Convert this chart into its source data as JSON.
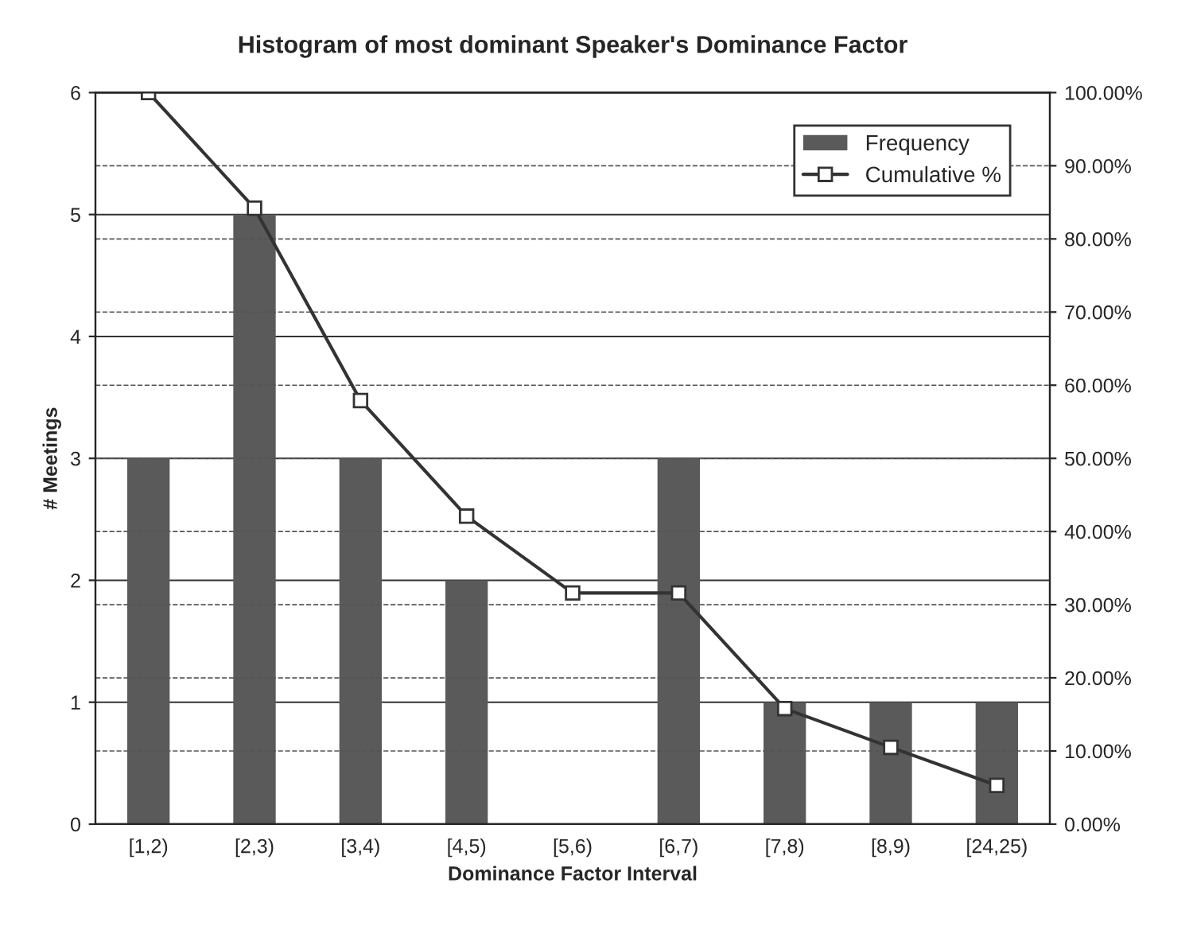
{
  "chart_data": {
    "type": "bar",
    "title": "Histogram of most dominant Speaker's Dominance Factor",
    "xlabel": "Dominance Factor Interval",
    "ylabel": "# Meetings",
    "categories": [
      "[1,2)",
      "[2,3)",
      "[3,4)",
      "[4,5)",
      "[5,6)",
      "[6,7)",
      "[7,8)",
      "[8,9)",
      "[24,25)"
    ],
    "series": [
      {
        "name": "Frequency",
        "color": "#5a5a5a",
        "values": [
          3,
          5,
          3,
          2,
          0,
          3,
          1,
          1,
          1
        ]
      },
      {
        "name": "Cumulative %",
        "type": "line",
        "axis": "y2",
        "color": "#333333",
        "marker": "square",
        "values": [
          100,
          84.2,
          57.9,
          42.1,
          31.6,
          31.6,
          15.8,
          10.5,
          5.3
        ]
      }
    ],
    "ylim": [
      0,
      6
    ],
    "yticks": [
      0,
      1,
      2,
      3,
      4,
      5,
      6
    ],
    "y2lim": [
      0,
      100
    ],
    "y2ticks": [
      {
        "value": 0,
        "label": "0.00%"
      },
      {
        "value": 10,
        "label": "10.00%"
      },
      {
        "value": 20,
        "label": "20.00%"
      },
      {
        "value": 30,
        "label": "30.00%"
      },
      {
        "value": 40,
        "label": "40.00%"
      },
      {
        "value": 50,
        "label": "50.00%"
      },
      {
        "value": 60,
        "label": "60.00%"
      },
      {
        "value": 70,
        "label": "70.00%"
      },
      {
        "value": 80,
        "label": "80.00%"
      },
      {
        "value": 90,
        "label": "90.00%"
      },
      {
        "value": 100,
        "label": "100.00%"
      }
    ],
    "grid": "y",
    "legend": "top right"
  }
}
